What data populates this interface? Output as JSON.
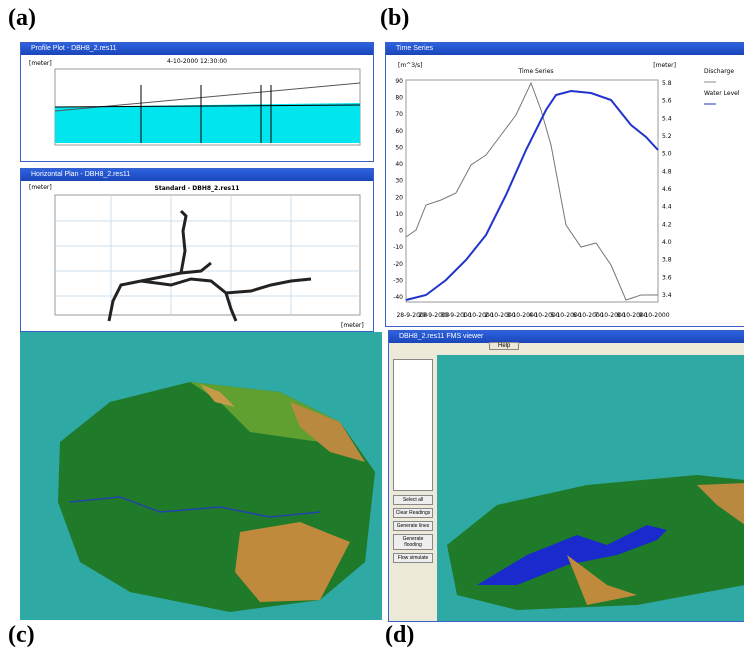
{
  "panel_labels": [
    "(a)",
    "(b)",
    "(c)",
    "(d)"
  ],
  "profile": {
    "window_title": "Profile Plot - DBH8_2.res11",
    "timestamp": "4-10-2000 12:30:00",
    "unit": "[meter]"
  },
  "plan": {
    "window_title": "Horizontal Plan - DBH8_2.res11",
    "title": "Standard - DBH8_2.res11",
    "unit": "[meter]"
  },
  "time_series": {
    "window_title": "Time Series",
    "title": "Time Series",
    "left_unit": "[m^3/s]",
    "right_unit": "[meter]",
    "legend": [
      "Discharge",
      "Water Level"
    ],
    "left_ticks": [
      "90",
      "80",
      "70",
      "60",
      "50",
      "40",
      "30",
      "20",
      "10",
      "0",
      "-10",
      "-20",
      "-30",
      "-40"
    ],
    "right_ticks": [
      "5.8",
      "5.6",
      "5.4",
      "5.2",
      "5.0",
      "4.8",
      "4.6",
      "4.4",
      "4.2",
      "4.0",
      "3.8",
      "3.6",
      "3.4"
    ],
    "dates": [
      "28-9-2000",
      "29-9-2000",
      "30-9-2000",
      "1-10-2000",
      "2-10-2000",
      "3-10-2000",
      "4-10-2000",
      "5-10-2000",
      "6-10-2000",
      "7-10-2000",
      "8-10-2000",
      "9-10-2000"
    ]
  },
  "flood": {
    "window_title": "DBH8_2.res11 FMS viewer",
    "help": "Help",
    "buttons": [
      "Select all",
      "Clear Readings",
      "Generate lines",
      "Generate flooding",
      "Flow simulate"
    ]
  }
}
